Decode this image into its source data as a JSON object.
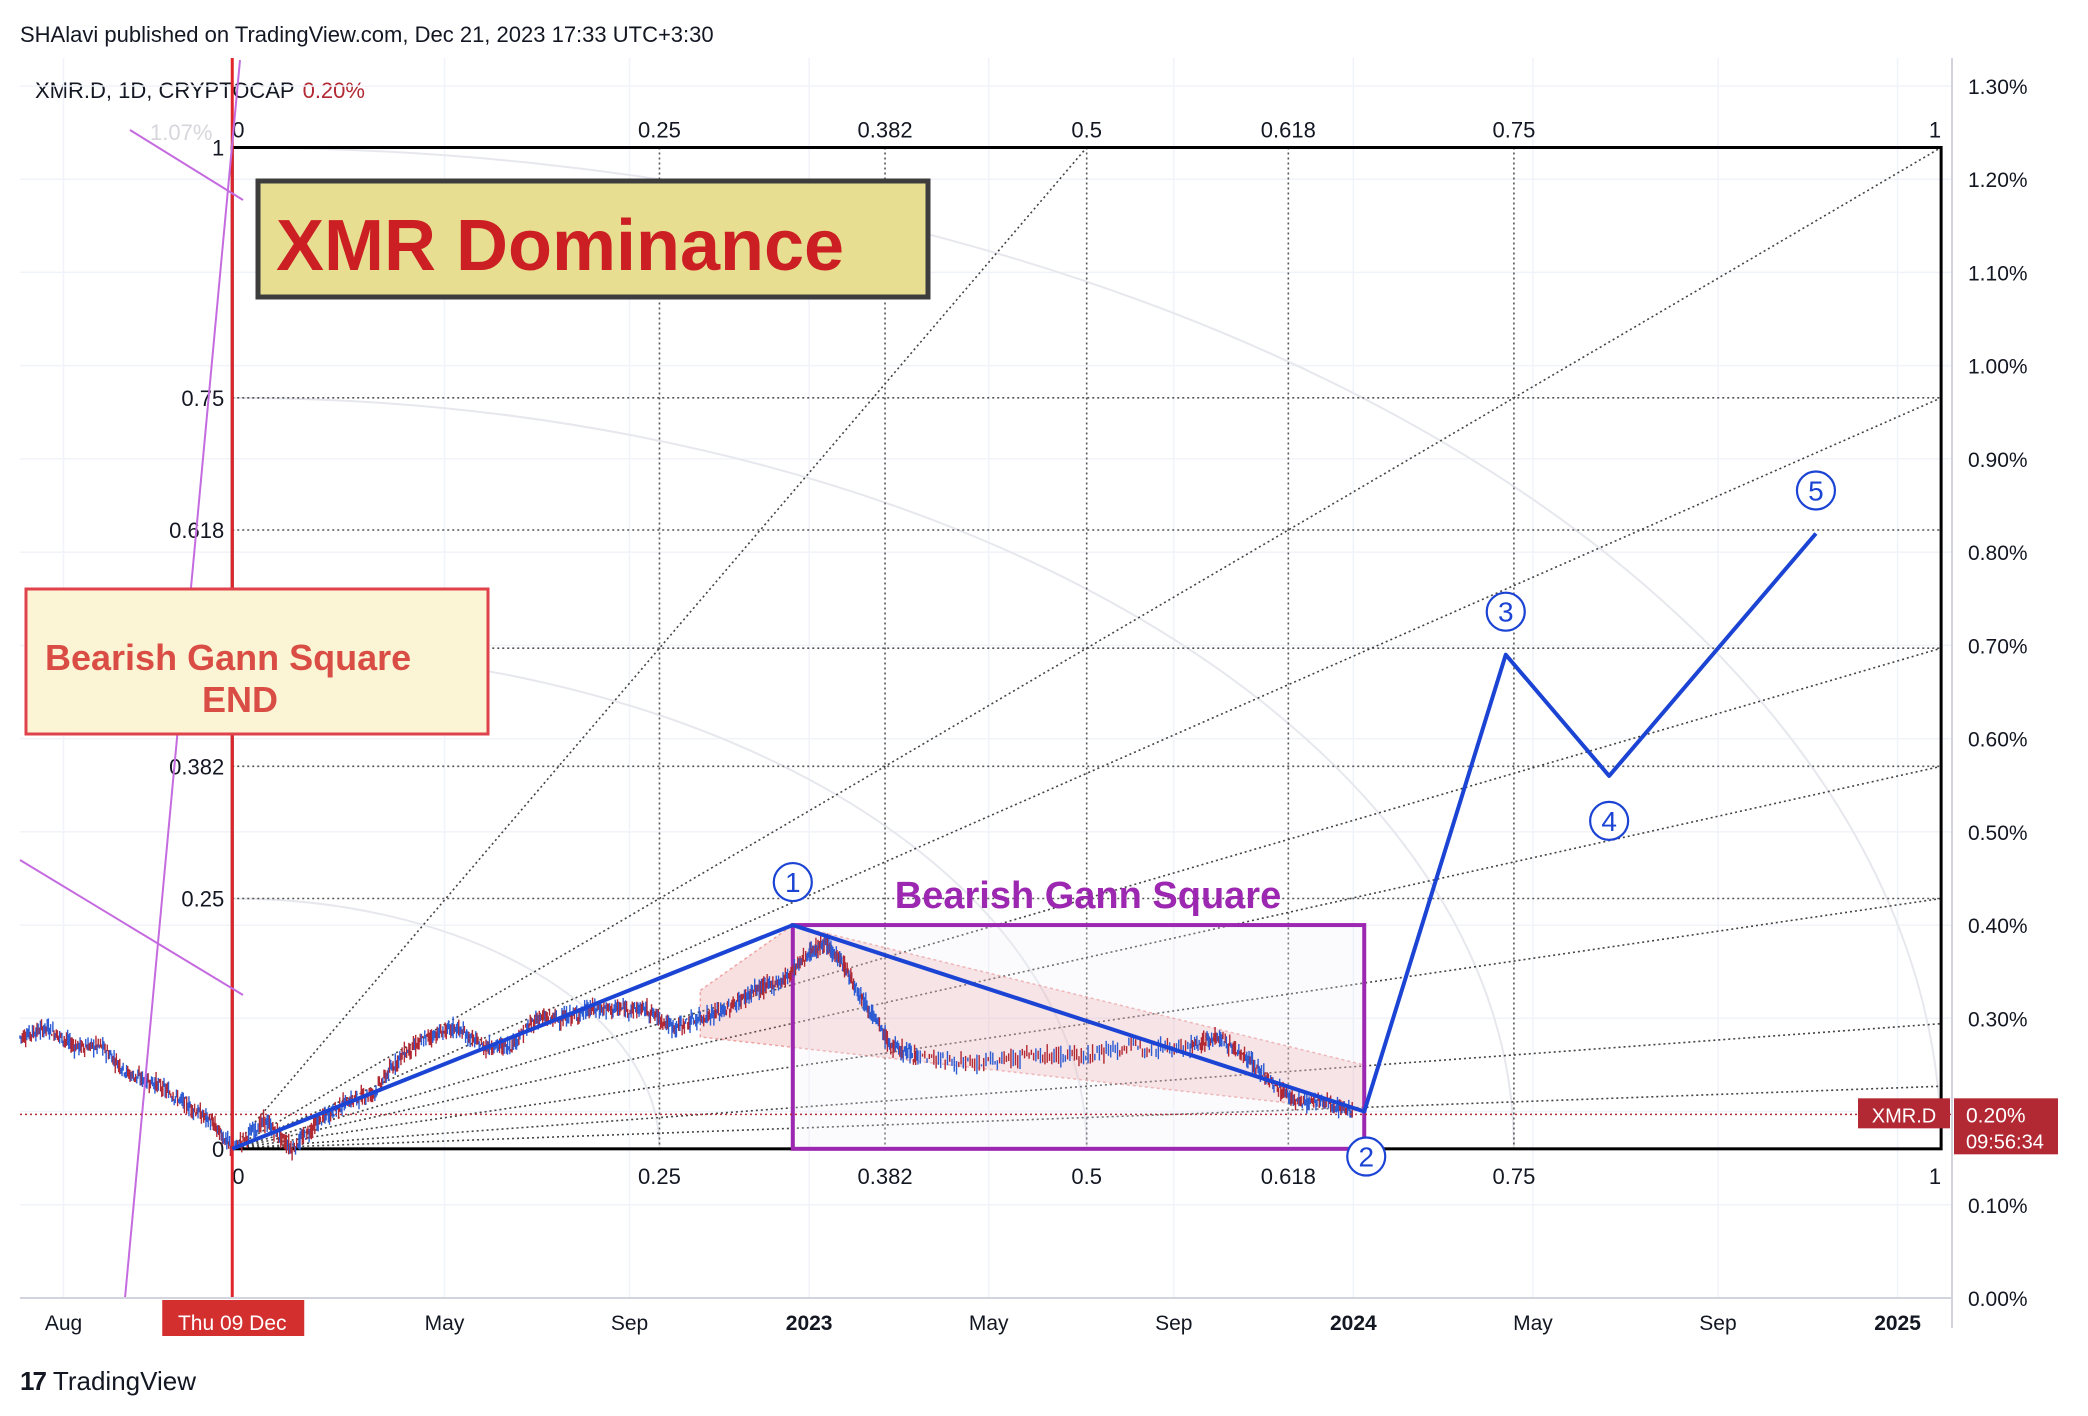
{
  "header": {
    "publisher_line": "SHAlavi published on TradingView.com, Dec 21, 2023 17:33 UTC+3:30",
    "symbol_line": "XMR.D, 1D, CRYPTOCAP",
    "symbol_change": "0.20%"
  },
  "footer": {
    "brand": "TradingView",
    "logo": "17"
  },
  "chart_data": {
    "type": "line",
    "title": "XMR Dominance",
    "symbol": "XMR.D",
    "timeframe": "1D",
    "exchange": "CRYPTOCAP",
    "y_axis": {
      "unit": "%",
      "range": [
        0.0,
        1.33
      ],
      "ticks": [
        0.0,
        0.1,
        0.2,
        0.3,
        0.4,
        0.5,
        0.6,
        0.7,
        0.8,
        0.9,
        1.0,
        1.1,
        1.2,
        1.3
      ],
      "tick_labels": [
        "0.00%",
        "0.10%",
        "0.20%",
        "0.30%",
        "0.40%",
        "0.50%",
        "0.60%",
        "0.70%",
        "0.80%",
        "0.90%",
        "1.00%",
        "1.10%",
        "1.20%",
        "1.30%"
      ],
      "ghost_label": "1.07%"
    },
    "x_axis": {
      "range": [
        2021.55,
        2025.1
      ],
      "ticks": [
        {
          "t": 2021.63,
          "label": "Aug",
          "bold": false
        },
        {
          "t": 2022.33,
          "label": "May",
          "bold": false
        },
        {
          "t": 2022.67,
          "label": "Sep",
          "bold": false
        },
        {
          "t": 2023.0,
          "label": "2023",
          "bold": true
        },
        {
          "t": 2023.33,
          "label": "May",
          "bold": false
        },
        {
          "t": 2023.67,
          "label": "Sep",
          "bold": false
        },
        {
          "t": 2024.0,
          "label": "2024",
          "bold": true
        },
        {
          "t": 2024.33,
          "label": "May",
          "bold": false
        },
        {
          "t": 2024.67,
          "label": "Sep",
          "bold": false
        },
        {
          "t": 2025.0,
          "label": "2025",
          "bold": true
        }
      ],
      "cursor_label": "Thu 09 Dec",
      "cursor_t": 2021.94
    },
    "price_badge": {
      "symbol": "XMR.D",
      "value": "0.20%",
      "countdown": "09:56:34",
      "price": 0.197
    },
    "price_series": {
      "name": "XMR.D",
      "x": [
        2021.55,
        2021.6,
        2021.65,
        2021.7,
        2021.75,
        2021.8,
        2021.85,
        2021.9,
        2021.94,
        2022.0,
        2022.05,
        2022.1,
        2022.15,
        2022.2,
        2022.25,
        2022.3,
        2022.35,
        2022.4,
        2022.45,
        2022.5,
        2022.55,
        2022.6,
        2022.65,
        2022.7,
        2022.75,
        2022.8,
        2022.85,
        2022.9,
        2022.95,
        2023.0,
        2023.03,
        2023.06,
        2023.1,
        2023.15,
        2023.2,
        2023.3,
        2023.4,
        2023.5,
        2023.6,
        2023.7,
        2023.75,
        2023.8,
        2023.85,
        2023.9,
        2023.95,
        2024.0
      ],
      "y": [
        0.28,
        0.29,
        0.27,
        0.27,
        0.24,
        0.23,
        0.21,
        0.19,
        0.16,
        0.19,
        0.16,
        0.19,
        0.21,
        0.22,
        0.26,
        0.28,
        0.29,
        0.27,
        0.27,
        0.3,
        0.3,
        0.31,
        0.31,
        0.31,
        0.29,
        0.3,
        0.31,
        0.33,
        0.34,
        0.37,
        0.38,
        0.36,
        0.32,
        0.27,
        0.26,
        0.25,
        0.26,
        0.26,
        0.27,
        0.27,
        0.28,
        0.26,
        0.23,
        0.21,
        0.21,
        0.2
      ]
    },
    "gann_square": {
      "t0": 2021.94,
      "t1": 2025.08,
      "v0": 0.16,
      "v1": 1.234,
      "levels": [
        0,
        0.25,
        0.382,
        0.5,
        0.618,
        0.75,
        1
      ],
      "level_labels": [
        "0",
        "0.25",
        "0.382",
        "0.5",
        "0.618",
        "0.75",
        "1"
      ],
      "fan_targets": [
        1.0,
        0.75,
        0.5,
        0.382,
        0.25,
        0.125,
        0.0625
      ]
    },
    "elliott_wave": {
      "points": [
        {
          "t": 2021.94,
          "v": 0.16,
          "label": ""
        },
        {
          "t": 2022.97,
          "v": 0.4,
          "label": "1"
        },
        {
          "t": 2024.02,
          "v": 0.2,
          "label": "2"
        },
        {
          "t": 2024.28,
          "v": 0.69,
          "label": "3"
        },
        {
          "t": 2024.47,
          "v": 0.56,
          "label": "4"
        },
        {
          "t": 2024.85,
          "v": 0.82,
          "label": "5"
        }
      ],
      "labels": [
        "1",
        "2",
        "3",
        "4",
        "5"
      ]
    },
    "annotations": [
      {
        "text": "XMR Dominance",
        "kind": "title-box"
      },
      {
        "text": "Bearish Gann Square",
        "kind": "purple-label"
      },
      {
        "text": "Bearish Gann Square",
        "line2": "END",
        "kind": "red-box"
      }
    ],
    "bearish_square": {
      "t0": 2022.97,
      "t1": 2024.02,
      "v0": 0.16,
      "v1": 0.4
    },
    "wedge": {
      "upper": [
        [
          2022.8,
          0.33
        ],
        [
          2022.97,
          0.4
        ],
        [
          2024.02,
          0.25
        ]
      ],
      "lower": [
        [
          2022.8,
          0.28
        ],
        [
          2024.02,
          0.2
        ]
      ]
    },
    "colors": {
      "blue": "#1c44d4",
      "purple": "#9c27b0",
      "red": "#d32f2f",
      "candle_up": "#2d5bd3",
      "candle_down": "#b22833",
      "title_box": "#e8de91",
      "title_text": "#cc1f24"
    }
  }
}
